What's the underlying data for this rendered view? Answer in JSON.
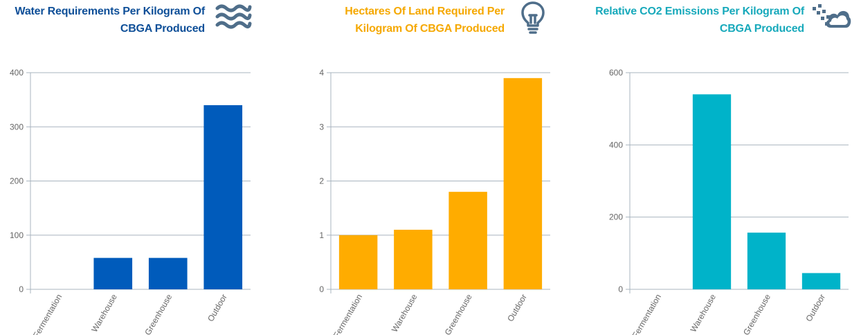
{
  "charts": [
    {
      "title_lines": [
        "Water Requirements Per Kilogram Of",
        "CBGA Produced"
      ],
      "title_color": "#0e4f98",
      "icon": "water-waves-icon",
      "icon_color": "#4f6e8a",
      "chart_data": {
        "type": "bar",
        "categories": [
          "Fermentation",
          "Warehouse",
          "Greenhouse",
          "Outdoor"
        ],
        "values": [
          0,
          58,
          58,
          340
        ],
        "ylim": [
          0,
          400
        ],
        "yticks": [
          "0",
          "100",
          "200",
          "300",
          "400"
        ],
        "bar_color": "#005bbb",
        "grid": true
      }
    },
    {
      "title_lines": [
        "Hectares Of Land Required Per",
        "Kilogram Of CBGA Produced"
      ],
      "title_color": "#f5a800",
      "icon": "lightbulb-icon",
      "icon_color": "#4f6e8a",
      "chart_data": {
        "type": "bar",
        "categories": [
          "Fermentation",
          "Warehouse",
          "Greenhouse",
          "Outdoor"
        ],
        "values": [
          1.0,
          1.1,
          1.8,
          3.9
        ],
        "ylim": [
          0,
          4
        ],
        "yticks": [
          "0",
          "1",
          "2",
          "3",
          "4"
        ],
        "bar_color": "#ffac00",
        "grid": true
      }
    },
    {
      "title_lines": [
        "Relative CO2 Emissions Per Kilogram Of",
        "CBGA Produced"
      ],
      "title_color": "#17a9bb",
      "icon": "cloud-emissions-icon",
      "icon_color": "#4f6e8a",
      "chart_data": {
        "type": "bar",
        "categories": [
          "Fermentation",
          "Warehouse",
          "Greenhouse",
          "Outdoor"
        ],
        "values": [
          0,
          540,
          157,
          45
        ],
        "ylim": [
          0,
          600
        ],
        "yticks": [
          "0",
          "200",
          "400",
          "600"
        ],
        "bar_color": "#00b3c9",
        "grid": true
      }
    }
  ]
}
